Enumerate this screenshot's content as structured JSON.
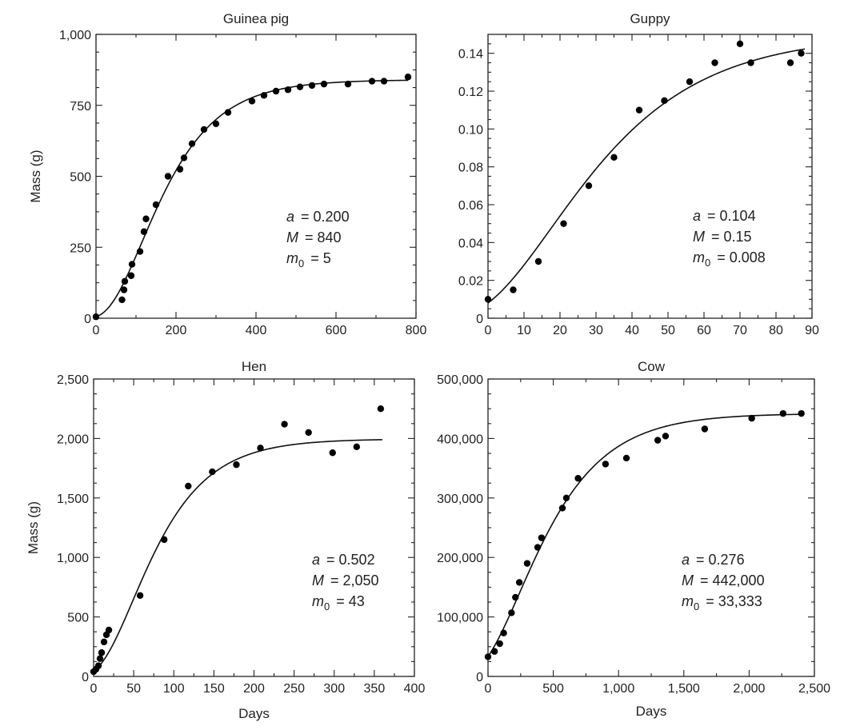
{
  "chart_data": [
    {
      "type": "scatter",
      "title": "Guinea pig",
      "xlabel": "",
      "ylabel": "Mass (g)",
      "xlim": [
        0,
        800
      ],
      "ylim": [
        0,
        1000
      ],
      "xticks": [
        0,
        200,
        400,
        600,
        800
      ],
      "yticks": [
        0,
        250,
        500,
        750,
        1000
      ],
      "xtick_labels": [
        "0",
        "200",
        "400",
        "600",
        "800"
      ],
      "ytick_labels": [
        "0",
        "250",
        "500",
        "750",
        "1,000"
      ],
      "params": {
        "a_label": "a",
        "a_value": "= 0.200",
        "M_label": "M",
        "M_value": "= 840",
        "m0_label": "m",
        "m0_sub": "0",
        "m0_value": "= 5"
      },
      "fit": {
        "a": 0.2,
        "M": 840,
        "m0": 5,
        "x_max": 780
      },
      "points": [
        {
          "x": 0,
          "y": 5
        },
        {
          "x": 65,
          "y": 65
        },
        {
          "x": 70,
          "y": 100
        },
        {
          "x": 72,
          "y": 130
        },
        {
          "x": 88,
          "y": 150
        },
        {
          "x": 90,
          "y": 190
        },
        {
          "x": 110,
          "y": 235
        },
        {
          "x": 120,
          "y": 305
        },
        {
          "x": 125,
          "y": 350
        },
        {
          "x": 150,
          "y": 400
        },
        {
          "x": 180,
          "y": 500
        },
        {
          "x": 210,
          "y": 525
        },
        {
          "x": 220,
          "y": 565
        },
        {
          "x": 240,
          "y": 615
        },
        {
          "x": 270,
          "y": 665
        },
        {
          "x": 300,
          "y": 685
        },
        {
          "x": 330,
          "y": 725
        },
        {
          "x": 390,
          "y": 765
        },
        {
          "x": 420,
          "y": 785
        },
        {
          "x": 450,
          "y": 800
        },
        {
          "x": 480,
          "y": 805
        },
        {
          "x": 510,
          "y": 815
        },
        {
          "x": 540,
          "y": 820
        },
        {
          "x": 570,
          "y": 825
        },
        {
          "x": 630,
          "y": 825
        },
        {
          "x": 690,
          "y": 835
        },
        {
          "x": 720,
          "y": 835
        },
        {
          "x": 780,
          "y": 850
        }
      ]
    },
    {
      "type": "scatter",
      "title": "Guppy",
      "xlabel": "",
      "ylabel": "",
      "xlim": [
        0,
        90
      ],
      "ylim": [
        0,
        0.15
      ],
      "xticks": [
        0,
        10,
        20,
        30,
        40,
        50,
        60,
        70,
        80,
        90
      ],
      "yticks": [
        0,
        0.02,
        0.04,
        0.06,
        0.08,
        0.1,
        0.12,
        0.14
      ],
      "xtick_labels": [
        "0",
        "10",
        "20",
        "30",
        "40",
        "50",
        "60",
        "70",
        "80",
        "90"
      ],
      "ytick_labels": [
        "0",
        "0.02",
        "0.04",
        "0.06",
        "0.08",
        "0.10",
        "0.12",
        "0.14"
      ],
      "params": {
        "a_label": "a",
        "a_value": "= 0.104",
        "M_label": "M",
        "M_value": "= 0.15",
        "m0_label": "m",
        "m0_sub": "0",
        "m0_value": "= 0.008"
      },
      "fit": {
        "a": 0.104,
        "M": 0.15,
        "m0": 0.008,
        "x_max": 88
      },
      "points": [
        {
          "x": 0,
          "y": 0.01
        },
        {
          "x": 7,
          "y": 0.015
        },
        {
          "x": 14,
          "y": 0.03
        },
        {
          "x": 21,
          "y": 0.05
        },
        {
          "x": 28,
          "y": 0.07
        },
        {
          "x": 35,
          "y": 0.085
        },
        {
          "x": 42,
          "y": 0.11
        },
        {
          "x": 49,
          "y": 0.115
        },
        {
          "x": 56,
          "y": 0.125
        },
        {
          "x": 63,
          "y": 0.135
        },
        {
          "x": 70,
          "y": 0.145
        },
        {
          "x": 73,
          "y": 0.135
        },
        {
          "x": 84,
          "y": 0.135
        },
        {
          "x": 87,
          "y": 0.14
        }
      ]
    },
    {
      "type": "scatter",
      "title": "Hen",
      "xlabel": "Days",
      "ylabel": "Mass (g)",
      "xlim": [
        0,
        400
      ],
      "ylim": [
        0,
        2500
      ],
      "xticks": [
        0,
        50,
        100,
        150,
        200,
        250,
        300,
        350,
        400
      ],
      "yticks": [
        0,
        500,
        1000,
        1500,
        2000,
        2500
      ],
      "xtick_labels": [
        "0",
        "50",
        "100",
        "150",
        "200",
        "250",
        "300",
        "350",
        "400"
      ],
      "ytick_labels": [
        "0",
        "500",
        "1,000",
        "1,500",
        "2,000",
        "2,500"
      ],
      "params": {
        "a_label": "a",
        "a_value": "= 0.502",
        "M_label": "M",
        "M_value": "= 2,050",
        "m0_label": "m",
        "m0_sub": "0",
        "m0_value": "= 43"
      },
      "fit": {
        "a": 0.502,
        "M": 2050,
        "m0": 43,
        "x_max": 360,
        "y_end": 1990
      },
      "points": [
        {
          "x": 0,
          "y": 40
        },
        {
          "x": 3,
          "y": 60
        },
        {
          "x": 6,
          "y": 90
        },
        {
          "x": 8,
          "y": 150
        },
        {
          "x": 10,
          "y": 200
        },
        {
          "x": 13,
          "y": 290
        },
        {
          "x": 16,
          "y": 350
        },
        {
          "x": 19,
          "y": 390
        },
        {
          "x": 58,
          "y": 680
        },
        {
          "x": 88,
          "y": 1150
        },
        {
          "x": 118,
          "y": 1600
        },
        {
          "x": 148,
          "y": 1720
        },
        {
          "x": 178,
          "y": 1780
        },
        {
          "x": 208,
          "y": 1920
        },
        {
          "x": 238,
          "y": 2120
        },
        {
          "x": 268,
          "y": 2050
        },
        {
          "x": 298,
          "y": 1880
        },
        {
          "x": 328,
          "y": 1930
        },
        {
          "x": 358,
          "y": 2250
        }
      ]
    },
    {
      "type": "scatter",
      "title": "Cow",
      "xlabel": "Days",
      "ylabel": "",
      "xlim": [
        0,
        2500
      ],
      "ylim": [
        0,
        500000
      ],
      "xticks": [
        0,
        500,
        1000,
        1500,
        2000,
        2500
      ],
      "yticks": [
        0,
        100000,
        200000,
        300000,
        400000,
        500000
      ],
      "xtick_labels": [
        "0",
        "500",
        "1,000",
        "1,500",
        "2,000",
        "2,500"
      ],
      "ytick_labels": [
        "0",
        "100,000",
        "200,000",
        "300,000",
        "400,000",
        "500,000"
      ],
      "params": {
        "a_label": "a",
        "a_value": "= 0.276",
        "M_label": "M",
        "M_value": "= 442,000",
        "m0_label": "m",
        "m0_sub": "0",
        "m0_value": "= 33,333"
      },
      "fit": {
        "a": 0.276,
        "M": 442000,
        "m0": 33333,
        "x_max": 2400
      },
      "points": [
        {
          "x": 0,
          "y": 33000
        },
        {
          "x": 50,
          "y": 42000
        },
        {
          "x": 90,
          "y": 55000
        },
        {
          "x": 120,
          "y": 73000
        },
        {
          "x": 180,
          "y": 107000
        },
        {
          "x": 210,
          "y": 133000
        },
        {
          "x": 240,
          "y": 158000
        },
        {
          "x": 300,
          "y": 190000
        },
        {
          "x": 380,
          "y": 217000
        },
        {
          "x": 410,
          "y": 233000
        },
        {
          "x": 570,
          "y": 283000
        },
        {
          "x": 600,
          "y": 300000
        },
        {
          "x": 690,
          "y": 333000
        },
        {
          "x": 900,
          "y": 357000
        },
        {
          "x": 1060,
          "y": 367000
        },
        {
          "x": 1300,
          "y": 397000
        },
        {
          "x": 1360,
          "y": 404000
        },
        {
          "x": 1660,
          "y": 416000
        },
        {
          "x": 2020,
          "y": 434000
        },
        {
          "x": 2260,
          "y": 442000
        },
        {
          "x": 2400,
          "y": 442000
        }
      ]
    }
  ]
}
